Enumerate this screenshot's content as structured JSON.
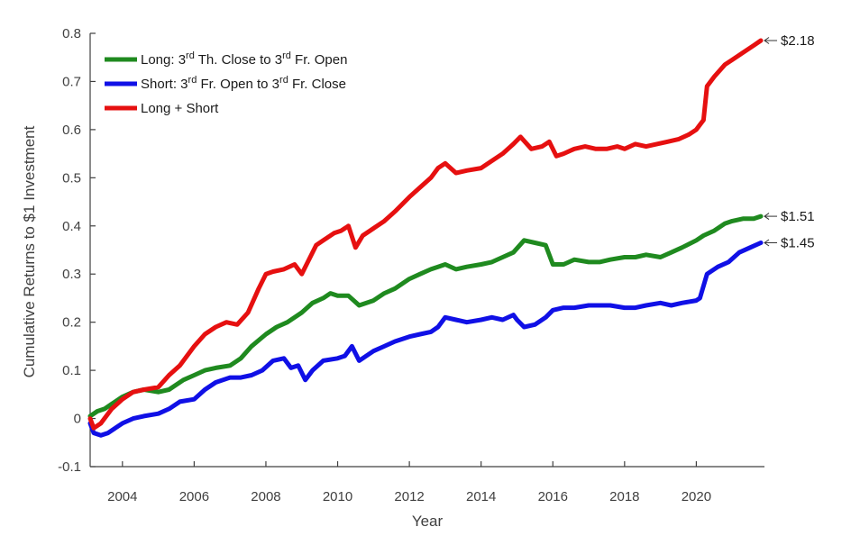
{
  "chart_data": {
    "type": "line",
    "title": "",
    "xlabel": "Year",
    "ylabel": "Cumulative Returns to $1 Investment",
    "xlim": [
      2003.1,
      2021.9
    ],
    "ylim": [
      -0.1,
      0.8
    ],
    "xticks": [
      2004,
      2006,
      2008,
      2010,
      2012,
      2014,
      2016,
      2018,
      2020
    ],
    "xtick_labels": [
      "2004",
      "2006",
      "2008",
      "2010",
      "2012",
      "2014",
      "2016",
      "2018",
      "2020"
    ],
    "yticks": [
      -0.1,
      0,
      0.1,
      0.2,
      0.3,
      0.4,
      0.5,
      0.6,
      0.7,
      0.8
    ],
    "ytick_labels": [
      "-0.1",
      "0",
      "0.1",
      "0.2",
      "0.3",
      "0.4",
      "0.5",
      "0.6",
      "0.7",
      "0.8"
    ],
    "legend": {
      "placement": "top-left",
      "entries": [
        {
          "pre": "Long: 3",
          "sup1": "rd",
          "mid": " Th. Close to 3",
          "sup2": "rd",
          "post": " Fr. Open"
        },
        {
          "pre": "Short: 3",
          "sup1": "rd",
          "mid": " Fr. Open to 3",
          "sup2": "rd",
          "post": " Fr. Close"
        },
        {
          "pre": "Long + Short",
          "sup1": "",
          "mid": "",
          "sup2": "",
          "post": ""
        }
      ]
    },
    "series": [
      {
        "name": "Long: 3rd Th. Close to 3rd Fr. Open",
        "color": "#1f8a1f",
        "end_label": "$1.51",
        "x": [
          2003.1,
          2003.3,
          2003.5,
          2003.7,
          2004.0,
          2004.3,
          2004.6,
          2005.0,
          2005.3,
          2005.7,
          2006.0,
          2006.3,
          2006.6,
          2007.0,
          2007.3,
          2007.6,
          2008.0,
          2008.3,
          2008.6,
          2009.0,
          2009.3,
          2009.6,
          2009.8,
          2010.0,
          2010.3,
          2010.6,
          2011.0,
          2011.3,
          2011.6,
          2012.0,
          2012.3,
          2012.6,
          2012.8,
          2013.0,
          2013.3,
          2013.6,
          2014.0,
          2014.3,
          2014.6,
          2014.9,
          2015.2,
          2015.5,
          2015.8,
          2016.0,
          2016.3,
          2016.6,
          2017.0,
          2017.3,
          2017.6,
          2018.0,
          2018.3,
          2018.6,
          2019.0,
          2019.3,
          2019.6,
          2020.0,
          2020.2,
          2020.5,
          2020.8,
          2021.0,
          2021.3,
          2021.6,
          2021.8
        ],
        "y": [
          0.005,
          0.015,
          0.02,
          0.03,
          0.045,
          0.055,
          0.06,
          0.055,
          0.06,
          0.08,
          0.09,
          0.1,
          0.105,
          0.11,
          0.125,
          0.15,
          0.175,
          0.19,
          0.2,
          0.22,
          0.24,
          0.25,
          0.26,
          0.255,
          0.255,
          0.235,
          0.245,
          0.26,
          0.27,
          0.29,
          0.3,
          0.31,
          0.315,
          0.32,
          0.31,
          0.315,
          0.32,
          0.325,
          0.335,
          0.345,
          0.37,
          0.365,
          0.36,
          0.32,
          0.32,
          0.33,
          0.325,
          0.325,
          0.33,
          0.335,
          0.335,
          0.34,
          0.335,
          0.345,
          0.355,
          0.37,
          0.38,
          0.39,
          0.405,
          0.41,
          0.415,
          0.415,
          0.42
        ]
      },
      {
        "name": "Short: 3rd Fr. Open to 3rd Fr. Close",
        "color": "#1010e6",
        "end_label": "$1.45",
        "x": [
          2003.1,
          2003.2,
          2003.4,
          2003.6,
          2003.8,
          2004.0,
          2004.3,
          2004.6,
          2005.0,
          2005.3,
          2005.6,
          2006.0,
          2006.3,
          2006.6,
          2007.0,
          2007.3,
          2007.6,
          2007.9,
          2008.2,
          2008.5,
          2008.7,
          2008.9,
          2009.1,
          2009.3,
          2009.6,
          2010.0,
          2010.2,
          2010.4,
          2010.6,
          2011.0,
          2011.3,
          2011.6,
          2012.0,
          2012.3,
          2012.6,
          2012.8,
          2013.0,
          2013.3,
          2013.6,
          2014.0,
          2014.3,
          2014.6,
          2014.9,
          2015.0,
          2015.2,
          2015.5,
          2015.8,
          2016.0,
          2016.3,
          2016.6,
          2017.0,
          2017.3,
          2017.6,
          2018.0,
          2018.3,
          2018.6,
          2019.0,
          2019.3,
          2019.6,
          2020.0,
          2020.1,
          2020.3,
          2020.6,
          2020.9,
          2021.2,
          2021.5,
          2021.8
        ],
        "y": [
          -0.01,
          -0.03,
          -0.035,
          -0.03,
          -0.02,
          -0.01,
          0.0,
          0.005,
          0.01,
          0.02,
          0.035,
          0.04,
          0.06,
          0.075,
          0.085,
          0.085,
          0.09,
          0.1,
          0.12,
          0.125,
          0.105,
          0.11,
          0.08,
          0.1,
          0.12,
          0.125,
          0.13,
          0.15,
          0.12,
          0.14,
          0.15,
          0.16,
          0.17,
          0.175,
          0.18,
          0.19,
          0.21,
          0.205,
          0.2,
          0.205,
          0.21,
          0.205,
          0.215,
          0.205,
          0.19,
          0.195,
          0.21,
          0.225,
          0.23,
          0.23,
          0.235,
          0.235,
          0.235,
          0.23,
          0.23,
          0.235,
          0.24,
          0.235,
          0.24,
          0.245,
          0.25,
          0.3,
          0.315,
          0.325,
          0.345,
          0.355,
          0.365
        ]
      },
      {
        "name": "Long + Short",
        "color": "#e61010",
        "end_label": "$2.18",
        "x": [
          2003.1,
          2003.2,
          2003.4,
          2003.7,
          2004.0,
          2004.3,
          2004.6,
          2005.0,
          2005.3,
          2005.6,
          2006.0,
          2006.3,
          2006.6,
          2006.9,
          2007.2,
          2007.5,
          2007.8,
          2008.0,
          2008.2,
          2008.5,
          2008.8,
          2009.0,
          2009.2,
          2009.4,
          2009.6,
          2009.9,
          2010.1,
          2010.3,
          2010.5,
          2010.7,
          2011.0,
          2011.3,
          2011.6,
          2012.0,
          2012.3,
          2012.6,
          2012.8,
          2013.0,
          2013.3,
          2013.6,
          2014.0,
          2014.3,
          2014.6,
          2014.9,
          2015.1,
          2015.4,
          2015.7,
          2015.9,
          2016.1,
          2016.3,
          2016.6,
          2016.9,
          2017.2,
          2017.5,
          2017.8,
          2018.0,
          2018.3,
          2018.6,
          2018.9,
          2019.2,
          2019.5,
          2019.8,
          2020.0,
          2020.1,
          2020.2,
          2020.3,
          2020.5,
          2020.8,
          2021.0,
          2021.3,
          2021.6,
          2021.8
        ],
        "y": [
          0.0,
          -0.02,
          -0.01,
          0.02,
          0.04,
          0.055,
          0.06,
          0.065,
          0.09,
          0.11,
          0.15,
          0.175,
          0.19,
          0.2,
          0.195,
          0.22,
          0.27,
          0.3,
          0.305,
          0.31,
          0.32,
          0.3,
          0.33,
          0.36,
          0.37,
          0.385,
          0.39,
          0.4,
          0.355,
          0.38,
          0.395,
          0.41,
          0.43,
          0.46,
          0.48,
          0.5,
          0.52,
          0.53,
          0.51,
          0.515,
          0.52,
          0.535,
          0.55,
          0.57,
          0.585,
          0.56,
          0.565,
          0.575,
          0.545,
          0.55,
          0.56,
          0.565,
          0.56,
          0.56,
          0.565,
          0.56,
          0.57,
          0.565,
          0.57,
          0.575,
          0.58,
          0.59,
          0.6,
          0.61,
          0.62,
          0.69,
          0.71,
          0.735,
          0.745,
          0.76,
          0.775,
          0.785
        ]
      }
    ]
  }
}
